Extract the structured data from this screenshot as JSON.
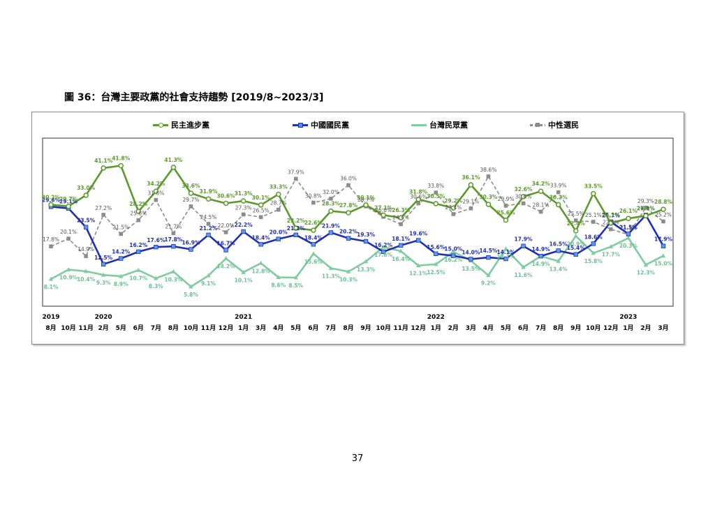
{
  "page": {
    "title": "圖 36：台灣主要政黨的社會支持趨勢 [2019/8~2023/3]",
    "page_number": "37"
  },
  "chart_data": {
    "type": "line",
    "title": "圖 36：台灣主要政黨的社會支持趨勢 [2019/8~2023/3]",
    "xlabel": "",
    "ylabel": "",
    "ylim": [
      0,
      50
    ],
    "grid": false,
    "legend_position": "top",
    "categories": [
      "8月",
      "10月",
      "11月",
      "2月",
      "5月",
      "6月",
      "7月",
      "8月",
      "10月",
      "11月",
      "12月",
      "1月",
      "3月",
      "4月",
      "5月",
      "6月",
      "7月",
      "8月",
      "9月",
      "10月",
      "11月",
      "12月",
      "1月",
      "2月",
      "3月",
      "4月",
      "5月",
      "6月",
      "7月",
      "8月",
      "9月",
      "10月",
      "12月",
      "1月",
      "2月",
      "3月"
    ],
    "years": [
      {
        "label": "2019",
        "index": 0
      },
      {
        "label": "2020",
        "index": 3
      },
      {
        "label": "2021",
        "index": 11
      },
      {
        "label": "2022",
        "index": 22
      },
      {
        "label": "2023",
        "index": 33
      }
    ],
    "series": [
      {
        "name": "民主進步黨",
        "color": "#5a9a2a",
        "marker": "circle",
        "dash": false,
        "values": [
          30.2,
          29.7,
          33.0,
          41.1,
          41.8,
          28.2,
          34.2,
          41.3,
          33.6,
          31.9,
          30.6,
          31.3,
          30.1,
          33.3,
          23.2,
          22.6,
          28.3,
          27.8,
          30.1,
          27.1,
          26.3,
          31.8,
          30.5,
          29.2,
          36.1,
          30.3,
          25.6,
          32.6,
          34.2,
          30.2,
          22.4,
          33.5,
          24.7,
          26.1,
          26.9,
          28.8
        ]
      },
      {
        "name": "中國國民黨",
        "color": "#1f2fb5",
        "marker": "square",
        "dash": false,
        "values": [
          29.6,
          29.1,
          23.5,
          12.5,
          14.2,
          16.2,
          17.6,
          17.8,
          16.9,
          21.2,
          16.7,
          22.2,
          18.4,
          20.0,
          21.2,
          18.4,
          21.9,
          20.2,
          19.3,
          16.2,
          18.1,
          19.6,
          15.6,
          15.0,
          14.0,
          14.5,
          14.1,
          17.9,
          14.9,
          16.5,
          15.4,
          18.6,
          25.1,
          21.5,
          27.1,
          17.9
        ]
      },
      {
        "name": "台灣民眾黨",
        "color": "#7fcca0",
        "marker": "triangle",
        "dash": false,
        "values": [
          8.1,
          10.9,
          10.4,
          9.3,
          8.9,
          10.7,
          8.3,
          10.3,
          5.8,
          9.1,
          14.2,
          10.1,
          12.8,
          8.6,
          8.5,
          15.6,
          11.3,
          10.3,
          13.3,
          17.6,
          16.4,
          12.1,
          12.5,
          16.2,
          13.5,
          9.2,
          17.1,
          11.6,
          14.9,
          13.4,
          20.9,
          15.8,
          17.7,
          20.3,
          12.3,
          15.0
        ]
      },
      {
        "name": "中性選民",
        "color": "#8c8c8c",
        "marker": "square",
        "dash": true,
        "values": [
          17.8,
          20.1,
          14.9,
          27.2,
          21.5,
          25.6,
          31.6,
          21.7,
          29.7,
          24.5,
          22.0,
          27.3,
          26.5,
          28.7,
          37.9,
          30.8,
          32.0,
          36.0,
          29.7,
          26.6,
          24.4,
          30.6,
          33.8,
          27.4,
          29.1,
          38.6,
          29.9,
          30.6,
          28.1,
          33.9,
          25.5,
          25.1,
          22.9,
          21.3,
          29.3,
          25.2
        ]
      }
    ],
    "value_labels": {
      "民主進步黨": [
        "30.2%",
        "29.7%",
        "33.0%",
        "41.1%",
        "41.8%",
        "28.2%",
        "34.2%",
        "41.3%",
        "33.6%",
        "31.9%",
        "30.6%",
        "31.3%",
        "30.1%",
        "33.3%",
        "23.2%",
        "22.6%",
        "28.3%",
        "27.8%",
        "30.1%",
        "27.1%",
        "26.3%",
        "31.8%",
        "30.5%",
        "29.2%",
        "36.1%",
        "30.3%",
        "25.6%",
        "32.6%",
        "34.2%",
        "30.2%",
        "22.4%",
        "33.5%",
        "24.7%",
        "26.1%",
        "26.9%",
        "28.8%"
      ],
      "中國國民黨": [
        "29.6%",
        "29.1%",
        "23.5%",
        "12.5%",
        "14.2%",
        "16.2%",
        "17.6%",
        "17.8%",
        "16.9%",
        "21.2%",
        "16.7%",
        "22.2%",
        "18.4%",
        "20.0%",
        "21.2%",
        "18.4%",
        "21.9%",
        "20.2%",
        "19.3%",
        "16.2%",
        "18.1%",
        "19.6%",
        "15.6%",
        "15.0%",
        "14.0%",
        "14.5%",
        "14.1%",
        "17.9%",
        "14.9%",
        "16.5%",
        "15.4%",
        "18.6%",
        "25.1%",
        "21.5%",
        "27.1%",
        "17.9%"
      ],
      "台灣民眾黨": [
        "8.1%",
        "10.9%",
        "10.4%",
        "9.3%",
        "8.9%",
        "10.7%",
        "8.3%",
        "10.3%",
        "5.8%",
        "9.1%",
        "14.2%",
        "10.1%",
        "12.8%",
        "8.6%",
        "8.5%",
        "15.6%",
        "11.3%",
        "10.3%",
        "13.3%",
        "17.6%",
        "16.4%",
        "12.1%",
        "12.5%",
        "16.2%",
        "13.5%",
        "9.2%",
        "17.1%",
        "11.6%",
        "14.9%",
        "13.4%",
        "20.9%",
        "15.8%",
        "17.7%",
        "20.3%",
        "12.3%",
        "15.0%"
      ],
      "中性選民": [
        "17.8%",
        "20.1%",
        "14.9%",
        "27.2%",
        "21.5%",
        "25.6%",
        "31.6%",
        "21.7%",
        "29.7%",
        "24.5%",
        "22.0%",
        "27.3%",
        "26.5%",
        "28.7%",
        "37.9%",
        "30.8%",
        "32.0%",
        "36.0%",
        "29.7%",
        "26.6%",
        "24.4%",
        "30.6%",
        "33.8%",
        "27.4%",
        "29.1%",
        "38.6%",
        "29.9%",
        "30.6%",
        "28.1%",
        "33.9%",
        "25.5%",
        "25.1%",
        "22.9%",
        "21.3%",
        "29.3%",
        "25.2%"
      ]
    }
  }
}
